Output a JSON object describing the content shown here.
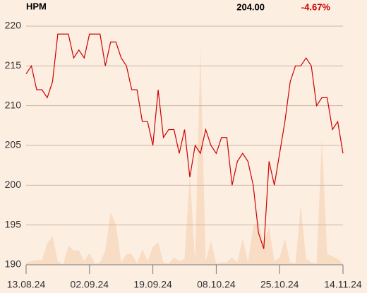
{
  "chart_data": {
    "type": "line",
    "title": "HPM",
    "price": {
      "value": 204,
      "label": "204.00"
    },
    "change": {
      "value": -4.67,
      "label": "-4.67%"
    },
    "categories": [
      "13.08.24",
      null,
      null,
      null,
      null,
      null,
      null,
      null,
      null,
      null,
      null,
      null,
      "02.09.24",
      null,
      null,
      null,
      null,
      null,
      null,
      null,
      null,
      null,
      null,
      null,
      "19.09.24",
      null,
      null,
      null,
      null,
      null,
      null,
      null,
      null,
      null,
      null,
      null,
      "08.10.24",
      null,
      null,
      null,
      null,
      null,
      null,
      null,
      null,
      null,
      null,
      null,
      "25.10.24",
      null,
      null,
      null,
      null,
      null,
      null,
      null,
      null,
      null,
      null,
      null,
      "14.11.24"
    ],
    "series": [
      {
        "color": "#cc0000",
        "values": [
          214,
          215,
          212,
          212,
          211,
          213,
          219,
          219,
          219,
          216,
          217,
          216,
          219,
          219,
          219,
          215,
          218,
          218,
          216,
          215,
          212,
          212,
          208,
          208,
          205,
          212,
          206,
          207,
          207,
          204,
          207,
          201,
          205,
          204,
          207,
          205,
          204,
          206,
          206,
          200,
          203,
          204,
          203,
          200,
          194,
          192,
          203,
          200,
          204,
          208,
          213,
          215,
          215,
          216,
          215,
          210,
          211,
          211,
          207,
          208,
          204
        ]
      },
      {
        "color": "#f8dcc4",
        "axis": "y2",
        "values": [
          1,
          1.5,
          2,
          2,
          9,
          12,
          1.5,
          0,
          8,
          6,
          6,
          1.5,
          5,
          0.5,
          1,
          6,
          22,
          17,
          1,
          4.5,
          4.5,
          0.5,
          6.5,
          1.5,
          7.5,
          9.5,
          1,
          0.5,
          3,
          1.5,
          2.5,
          38,
          1.5,
          91,
          1.5,
          10,
          0.5,
          1,
          1,
          3,
          1,
          11,
          1,
          16,
          18,
          9,
          16,
          1.5,
          3,
          11,
          1,
          0.5,
          25,
          2.5,
          1,
          0.5,
          53,
          4.5,
          3.5,
          2.5,
          0.5
        ]
      }
    ],
    "ylim": [
      190,
      220
    ],
    "yticks": [
      190,
      195,
      200,
      205,
      210,
      215,
      220
    ],
    "y2lim": [
      0,
      100
    ],
    "grid": true
  }
}
